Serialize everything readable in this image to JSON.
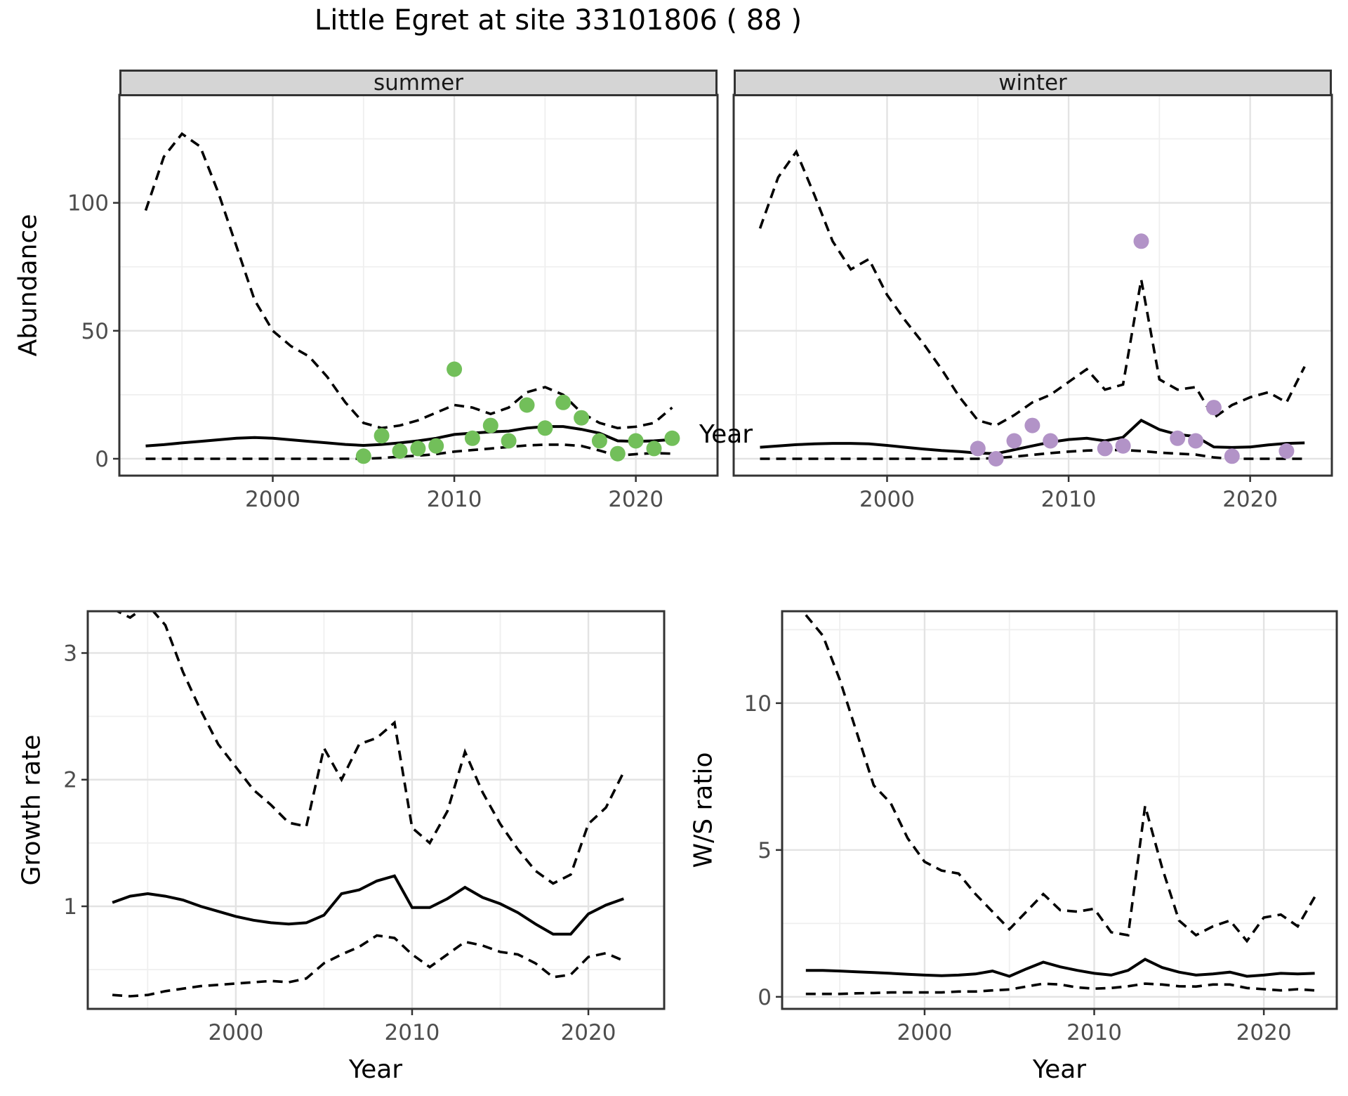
{
  "title": "Little Egret at site 33101806 ( 88 )",
  "colors": {
    "summer_point": "#72bf5a",
    "winter_point": "#b293c7",
    "line": "#000000",
    "grid_major": "#e3e3e3",
    "grid_minor": "#efefef",
    "panel_border": "#333333",
    "tick_text": "#4d4d4d",
    "strip_bg": "#d5d5d5"
  },
  "chart_data": [
    {
      "id": "abundance-summer",
      "type": "line",
      "facet_label": "summer",
      "xlabel": "Year",
      "ylabel": "Abundance",
      "xlim": [
        1991.55,
        2024.5
      ],
      "ylim": [
        -6.6,
        142.2
      ],
      "xticks": [
        2000,
        2010,
        2020
      ],
      "xminor": [
        1995,
        2005,
        2015
      ],
      "yticks": [
        0,
        50,
        100
      ],
      "yminor": [
        25,
        75,
        125
      ],
      "series": [
        {
          "name": "upper_ci",
          "style": "dashed",
          "x": [
            1993,
            1994,
            1995,
            1996,
            1997,
            1998,
            1999,
            2000,
            2001,
            2002,
            2003,
            2004,
            2005,
            2006,
            2007,
            2008,
            2009,
            2010,
            2011,
            2012,
            2013,
            2014,
            2015,
            2016,
            2017,
            2018,
            2019,
            2020,
            2021,
            2022
          ],
          "y": [
            97,
            118,
            127,
            122,
            104,
            83,
            62,
            50,
            44,
            40,
            32,
            22,
            14,
            12,
            13,
            15,
            18,
            21,
            20,
            17.5,
            20,
            26,
            28,
            25,
            18,
            14,
            12,
            12.5,
            14,
            20
          ]
        },
        {
          "name": "mean",
          "style": "solid",
          "x": [
            1993,
            1994,
            1995,
            1996,
            1997,
            1998,
            1999,
            2000,
            2001,
            2002,
            2003,
            2004,
            2005,
            2006,
            2007,
            2008,
            2009,
            2010,
            2011,
            2012,
            2013,
            2014,
            2015,
            2016,
            2017,
            2018,
            2019,
            2020,
            2021,
            2022
          ],
          "y": [
            5,
            5.5,
            6.2,
            6.8,
            7.4,
            8,
            8.3,
            8,
            7.4,
            6.8,
            6.2,
            5.6,
            5.2,
            5.6,
            6.2,
            7,
            8,
            9.5,
            10,
            10.5,
            10.8,
            12,
            12.6,
            12.6,
            11.5,
            10,
            7,
            6.8,
            7,
            7.5
          ]
        },
        {
          "name": "lower_ci",
          "style": "dashed",
          "x": [
            1993,
            1994,
            1995,
            1996,
            1997,
            1998,
            1999,
            2000,
            2001,
            2002,
            2003,
            2004,
            2005,
            2006,
            2007,
            2008,
            2009,
            2010,
            2011,
            2012,
            2013,
            2014,
            2015,
            2016,
            2017,
            2018,
            2019,
            2020,
            2021,
            2022
          ],
          "y": [
            0,
            0,
            0,
            0,
            0,
            0,
            0,
            0,
            0,
            0,
            0,
            0,
            0,
            0.3,
            0.8,
            1.2,
            1.8,
            2.8,
            3.4,
            4,
            4.6,
            5.2,
            5.5,
            5.5,
            5,
            3.2,
            1.2,
            1.8,
            2.2,
            2
          ]
        }
      ],
      "points": {
        "name": "observed_summer",
        "color_key": "summer_point",
        "x": [
          2005,
          2006,
          2007,
          2008,
          2009,
          2010,
          2011,
          2012,
          2013,
          2014,
          2015,
          2016,
          2017,
          2018,
          2019,
          2020,
          2021,
          2022
        ],
        "y": [
          1,
          9,
          3,
          4,
          5,
          35,
          8,
          13,
          7,
          21,
          12,
          22,
          16,
          7,
          2,
          7,
          4,
          8
        ]
      }
    },
    {
      "id": "abundance-winter",
      "type": "line",
      "facet_label": "winter",
      "xlabel": "Year",
      "ylabel": "Abundance",
      "xlim": [
        1991.55,
        2024.5
      ],
      "ylim": [
        -6.6,
        142.2
      ],
      "xticks": [
        2000,
        2010,
        2020
      ],
      "xminor": [
        1995,
        2005,
        2015
      ],
      "yticks": [
        0,
        50,
        100
      ],
      "yminor": [
        25,
        75,
        125
      ],
      "series": [
        {
          "name": "upper_ci",
          "style": "dashed",
          "x": [
            1993,
            1994,
            1995,
            1996,
            1997,
            1998,
            1999,
            2000,
            2001,
            2002,
            2003,
            2004,
            2005,
            2006,
            2007,
            2008,
            2009,
            2010,
            2011,
            2012,
            2013,
            2014,
            2015,
            2016,
            2017,
            2018,
            2019,
            2020,
            2021,
            2022,
            2023
          ],
          "y": [
            90,
            110,
            120,
            103,
            85,
            74,
            78,
            64,
            54,
            45,
            35,
            24,
            15,
            13,
            17,
            22,
            25,
            30,
            35,
            27,
            29,
            70,
            31,
            27,
            28,
            16,
            21,
            24,
            26,
            22,
            36
          ]
        },
        {
          "name": "mean",
          "style": "solid",
          "x": [
            1993,
            1994,
            1995,
            1996,
            1997,
            1998,
            1999,
            2000,
            2001,
            2002,
            2003,
            2004,
            2005,
            2006,
            2007,
            2008,
            2009,
            2010,
            2011,
            2012,
            2013,
            2014,
            2015,
            2016,
            2017,
            2018,
            2019,
            2020,
            2021,
            2022,
            2023
          ],
          "y": [
            4.5,
            5,
            5.5,
            5.8,
            6,
            6,
            5.8,
            5.2,
            4.5,
            3.8,
            3.2,
            2.8,
            2.2,
            2,
            3.5,
            5,
            6.5,
            7.5,
            8,
            7,
            8.4,
            15,
            11.4,
            9.5,
            8.7,
            4.6,
            4.4,
            4.6,
            5.4,
            6,
            6.2
          ]
        },
        {
          "name": "lower_ci",
          "style": "dashed",
          "x": [
            1993,
            1994,
            1995,
            1996,
            1997,
            1998,
            1999,
            2000,
            2001,
            2002,
            2003,
            2004,
            2005,
            2006,
            2007,
            2008,
            2009,
            2010,
            2011,
            2012,
            2013,
            2014,
            2015,
            2016,
            2017,
            2018,
            2019,
            2020,
            2021,
            2022,
            2023
          ],
          "y": [
            0,
            0,
            0,
            0,
            0,
            0,
            0,
            0,
            0,
            0,
            0,
            0,
            0,
            0.3,
            0.8,
            1.5,
            2.2,
            2.8,
            3.2,
            3.4,
            3.4,
            3,
            2.4,
            2,
            1.6,
            0.5,
            0,
            0,
            0,
            0,
            0
          ]
        }
      ],
      "points": {
        "name": "observed_winter",
        "color_key": "winter_point",
        "x": [
          2005,
          2006,
          2007,
          2008,
          2009,
          2012,
          2013,
          2014,
          2016,
          2017,
          2018,
          2019,
          2022
        ],
        "y": [
          4,
          0,
          7,
          13,
          7,
          4,
          5,
          85,
          8,
          7,
          20,
          1,
          3
        ]
      }
    },
    {
      "id": "growth-rate",
      "type": "line",
      "facet_label": "",
      "xlabel": "Year",
      "ylabel": "Growth rate",
      "xlim": [
        1991.6,
        2024.3
      ],
      "ylim": [
        0.19,
        3.33
      ],
      "xticks": [
        2000,
        2010,
        2020
      ],
      "xminor": [
        1995,
        2005,
        2015
      ],
      "yticks": [
        1,
        2,
        3
      ],
      "yminor": [
        0.5,
        1.5,
        2.5
      ],
      "series": [
        {
          "name": "upper_ci",
          "style": "dashed",
          "x": [
            1993,
            1994,
            1995,
            1996,
            1997,
            1998,
            1999,
            2000,
            2001,
            2002,
            2003,
            2004,
            2005,
            2006,
            2007,
            2008,
            2009,
            2010,
            2011,
            2012,
            2013,
            2014,
            2015,
            2016,
            2017,
            2018,
            2019,
            2020,
            2021,
            2022
          ],
          "y": [
            3.35,
            3.28,
            3.38,
            3.22,
            2.85,
            2.55,
            2.28,
            2.1,
            1.92,
            1.8,
            1.66,
            1.63,
            2.25,
            2,
            2.28,
            2.33,
            2.45,
            1.62,
            1.5,
            1.75,
            2.22,
            1.9,
            1.65,
            1.45,
            1.28,
            1.18,
            1.25,
            1.65,
            1.78,
            2.06
          ]
        },
        {
          "name": "mean",
          "style": "solid",
          "x": [
            1993,
            1994,
            1995,
            1996,
            1997,
            1998,
            1999,
            2000,
            2001,
            2002,
            2003,
            2004,
            2005,
            2006,
            2007,
            2008,
            2009,
            2010,
            2011,
            2012,
            2013,
            2014,
            2015,
            2016,
            2017,
            2018,
            2019,
            2020,
            2021,
            2022
          ],
          "y": [
            1.03,
            1.08,
            1.1,
            1.08,
            1.05,
            1,
            0.96,
            0.92,
            0.89,
            0.87,
            0.86,
            0.87,
            0.93,
            1.1,
            1.13,
            1.2,
            1.24,
            0.99,
            0.99,
            1.06,
            1.15,
            1.07,
            1.02,
            0.95,
            0.86,
            0.78,
            0.78,
            0.94,
            1.01,
            1.06
          ]
        },
        {
          "name": "lower_ci",
          "style": "dashed",
          "x": [
            1993,
            1994,
            1995,
            1996,
            1997,
            1998,
            1999,
            2000,
            2001,
            2002,
            2003,
            2004,
            2005,
            2006,
            2007,
            2008,
            2009,
            2010,
            2011,
            2012,
            2013,
            2014,
            2015,
            2016,
            2017,
            2018,
            2019,
            2020,
            2021,
            2022
          ],
          "y": [
            0.3,
            0.29,
            0.3,
            0.33,
            0.35,
            0.37,
            0.38,
            0.39,
            0.4,
            0.41,
            0.4,
            0.43,
            0.55,
            0.62,
            0.68,
            0.77,
            0.75,
            0.62,
            0.52,
            0.62,
            0.72,
            0.69,
            0.64,
            0.62,
            0.55,
            0.44,
            0.46,
            0.6,
            0.63,
            0.57
          ]
        }
      ],
      "points": null
    },
    {
      "id": "ws-ratio",
      "type": "line",
      "facet_label": "",
      "xlabel": "Year",
      "ylabel": "W/S ratio",
      "xlim": [
        1991.6,
        2024.3
      ],
      "ylim": [
        -0.41,
        13.13
      ],
      "xticks": [
        2000,
        2010,
        2020
      ],
      "xminor": [
        1995,
        2005,
        2015
      ],
      "yticks": [
        0,
        5,
        10
      ],
      "yminor": [
        2.5,
        7.5,
        12.5
      ],
      "series": [
        {
          "name": "upper_ci",
          "style": "dashed",
          "x": [
            1993,
            1994,
            1995,
            1996,
            1997,
            1998,
            1999,
            2000,
            2001,
            2002,
            2003,
            2004,
            2005,
            2006,
            2007,
            2008,
            2009,
            2010,
            2011,
            2012,
            2013,
            2014,
            2015,
            2016,
            2017,
            2018,
            2019,
            2020,
            2021,
            2022,
            2023
          ],
          "y": [
            13,
            12.3,
            10.8,
            9,
            7.2,
            6.6,
            5.4,
            4.6,
            4.3,
            4.2,
            3.5,
            2.9,
            2.3,
            2.9,
            3.5,
            2.95,
            2.9,
            3,
            2.2,
            2.1,
            6.5,
            4.4,
            2.6,
            2.1,
            2.4,
            2.6,
            1.9,
            2.7,
            2.8,
            2.4,
            3.4
          ]
        },
        {
          "name": "mean",
          "style": "solid",
          "x": [
            1993,
            1994,
            1995,
            1996,
            1997,
            1998,
            1999,
            2000,
            2001,
            2002,
            2003,
            2004,
            2005,
            2006,
            2007,
            2008,
            2009,
            2010,
            2011,
            2012,
            2013,
            2014,
            2015,
            2016,
            2017,
            2018,
            2019,
            2020,
            2021,
            2022,
            2023
          ],
          "y": [
            0.9,
            0.9,
            0.88,
            0.85,
            0.83,
            0.8,
            0.77,
            0.74,
            0.72,
            0.74,
            0.78,
            0.88,
            0.7,
            0.95,
            1.18,
            1.02,
            0.9,
            0.8,
            0.74,
            0.9,
            1.28,
            1,
            0.84,
            0.74,
            0.78,
            0.84,
            0.7,
            0.74,
            0.8,
            0.78,
            0.8
          ]
        },
        {
          "name": "lower_ci",
          "style": "dashed",
          "x": [
            1993,
            1994,
            1995,
            1996,
            1997,
            1998,
            1999,
            2000,
            2001,
            2002,
            2003,
            2004,
            2005,
            2006,
            2007,
            2008,
            2009,
            2010,
            2011,
            2012,
            2013,
            2014,
            2015,
            2016,
            2017,
            2018,
            2019,
            2020,
            2021,
            2022,
            2023
          ],
          "y": [
            0.1,
            0.1,
            0.1,
            0.12,
            0.13,
            0.15,
            0.15,
            0.15,
            0.15,
            0.18,
            0.18,
            0.22,
            0.25,
            0.35,
            0.45,
            0.42,
            0.32,
            0.28,
            0.3,
            0.36,
            0.45,
            0.42,
            0.36,
            0.35,
            0.42,
            0.42,
            0.3,
            0.26,
            0.22,
            0.26,
            0.22
          ]
        }
      ],
      "points": null
    }
  ]
}
